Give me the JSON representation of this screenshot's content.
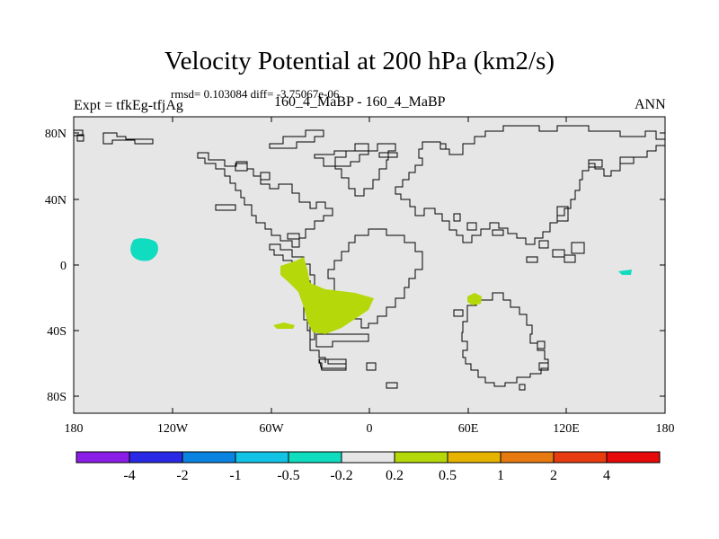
{
  "title": "Velocity Potential at 200 hPa (km2/s)",
  "stats": "rmsd= 0.103084  diff= -3.75067e-06",
  "experiment": "Expt = tfkEg-tfjAg",
  "case_label": "160_4_MaBP - 160_4_MaBP",
  "season": "ANN",
  "map": {
    "lon_range": [
      -180,
      180
    ],
    "lat_range": [
      -90,
      90
    ],
    "background_color": "#e6e6e6",
    "x_tick_labels": [
      "180",
      "120W",
      "60W",
      "0",
      "60E",
      "120E",
      "180"
    ],
    "y_tick_labels": [
      "80N",
      "40N",
      "0",
      "40S",
      "80S"
    ]
  },
  "colorbar": {
    "labels": [
      "-4",
      "-2",
      "-1",
      "-0.5",
      "-0.2",
      "0.2",
      "0.5",
      "1",
      "2",
      "4"
    ],
    "colors": [
      "#8a1ee6",
      "#2a2ae6",
      "#0a84e0",
      "#12c3e6",
      "#10dcc0",
      "#e6e6e6",
      "#b4d80a",
      "#e6b400",
      "#e67a10",
      "#e63c10",
      "#e60a0a"
    ]
  }
}
